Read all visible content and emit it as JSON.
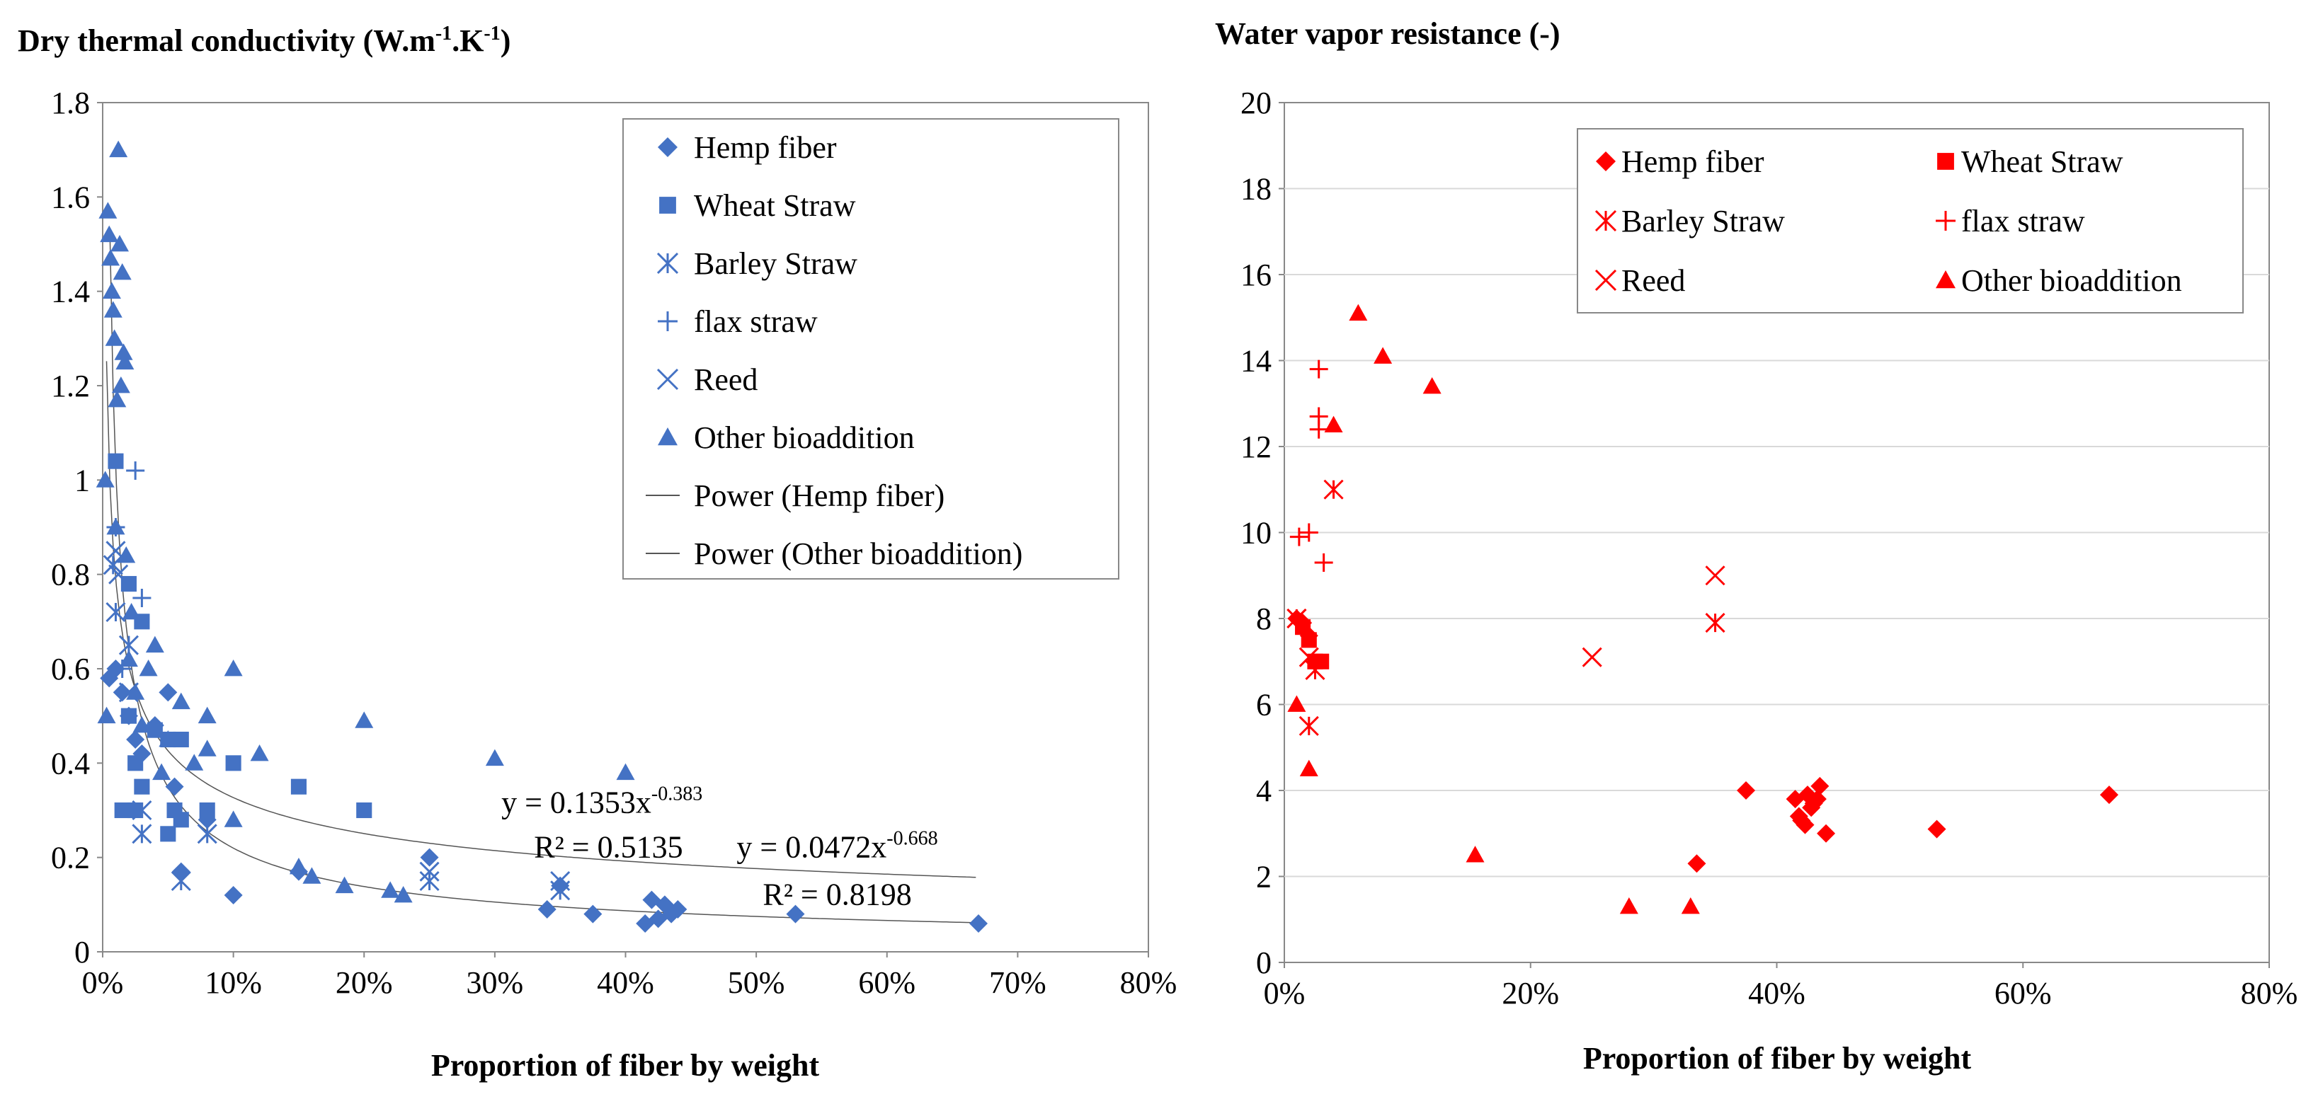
{
  "chart_data": [
    {
      "type": "scatter",
      "id": "left",
      "title": "Dry thermal conductivity (W.m-1.K-1)",
      "title_main": "Dry thermal conductivity (W.m",
      "title_sup1": "-1",
      "title_mid": ".K",
      "title_sup2": "-1",
      "title_end": ")",
      "xlabel": "Proportion of fiber by weight",
      "ylabel": "",
      "xlim": [
        0,
        80
      ],
      "ylim": [
        0,
        1.8
      ],
      "xticks": [
        0,
        10,
        20,
        30,
        40,
        50,
        60,
        70,
        80
      ],
      "xtick_labels": [
        "0%",
        "10%",
        "20%",
        "30%",
        "40%",
        "50%",
        "60%",
        "70%",
        "80%"
      ],
      "yticks": [
        0,
        0.2,
        0.4,
        0.6,
        0.8,
        1,
        1.2,
        1.4,
        1.6,
        1.8
      ],
      "ytick_labels": [
        "0",
        "0.2",
        "0.4",
        "0.6",
        "0.8",
        "1",
        "1.2",
        "1.4",
        "1.6",
        "1.8"
      ],
      "color": "#4472C4",
      "legend_position": "top-right",
      "series": [
        {
          "name": "Hemp fiber",
          "marker": "diamond",
          "x": [
            0.5,
            1,
            1.5,
            2,
            2.5,
            3,
            4,
            5,
            5.5,
            6,
            8,
            10,
            15,
            25,
            34,
            35,
            37.5,
            41.5,
            42,
            42.5,
            43,
            43.5,
            44,
            53,
            67
          ],
          "y": [
            0.58,
            0.6,
            0.55,
            0.5,
            0.45,
            0.42,
            0.48,
            0.55,
            0.35,
            0.17,
            0.28,
            0.12,
            0.17,
            0.2,
            0.09,
            0.14,
            0.08,
            0.06,
            0.11,
            0.07,
            0.1,
            0.08,
            0.09,
            0.08,
            0.06
          ]
        },
        {
          "name": "Wheat Straw",
          "marker": "square",
          "x": [
            1,
            1.5,
            2,
            2.5,
            3,
            2,
            2.5,
            3,
            4,
            5,
            5,
            5.5,
            6,
            6,
            8,
            10,
            15,
            20
          ],
          "y": [
            1.04,
            0.3,
            0.78,
            0.4,
            0.7,
            0.5,
            0.3,
            0.35,
            0.47,
            0.45,
            0.25,
            0.3,
            0.28,
            0.45,
            0.3,
            0.4,
            0.35,
            0.3
          ]
        },
        {
          "name": "Barley Straw",
          "marker": "asterisk",
          "x": [
            0.8,
            1,
            2,
            3,
            6,
            8,
            25,
            35
          ],
          "y": [
            0.82,
            0.72,
            0.65,
            0.25,
            0.15,
            0.25,
            0.15,
            0.13
          ]
        },
        {
          "name": "flax straw",
          "marker": "plus",
          "x": [
            1,
            1.5,
            2.5,
            3
          ],
          "y": [
            0.9,
            0.6,
            1.02,
            0.75
          ]
        },
        {
          "name": "Reed",
          "marker": "x",
          "x": [
            1,
            1.2,
            2,
            3,
            25,
            35
          ],
          "y": [
            0.85,
            0.8,
            0.55,
            0.3,
            0.17,
            0.15
          ]
        },
        {
          "name": "Other bioaddition",
          "marker": "triangle",
          "x": [
            0.2,
            0.3,
            0.4,
            0.5,
            0.6,
            0.7,
            0.8,
            0.9,
            1,
            1.1,
            1.2,
            1.3,
            1.4,
            1.5,
            1.6,
            1.7,
            1.8,
            2,
            2.2,
            2.5,
            3,
            3.5,
            4,
            4.5,
            5,
            6,
            7,
            8,
            8,
            10,
            10,
            12,
            15,
            16,
            18.5,
            20,
            22,
            23,
            30,
            40
          ],
          "y": [
            1.0,
            0.5,
            1.57,
            1.52,
            1.47,
            1.4,
            1.36,
            1.3,
            0.9,
            1.17,
            1.7,
            1.5,
            1.2,
            1.44,
            1.27,
            1.25,
            0.84,
            0.62,
            0.72,
            0.55,
            0.48,
            0.6,
            0.65,
            0.38,
            0.45,
            0.53,
            0.4,
            0.5,
            0.43,
            0.6,
            0.28,
            0.42,
            0.18,
            0.16,
            0.14,
            0.49,
            0.13,
            0.12,
            0.41,
            0.38
          ]
        },
        {
          "name": "Power (Hemp fiber)",
          "type": "line",
          "formula": {
            "a": 0.0472,
            "b": -0.668
          }
        },
        {
          "name": "Power (Other bioaddition)",
          "type": "line",
          "formula": {
            "a": 0.1353,
            "b": -0.383
          }
        }
      ],
      "annotations": [
        {
          "text_base": "y = 0.1353x",
          "text_sup": "-0.383",
          "x": 30.5,
          "y": 0.295
        },
        {
          "text_base": "R² = 0.5135",
          "text_sup": "",
          "x": 33,
          "y": 0.2
        },
        {
          "text_base": "y = 0.0472x",
          "text_sup": "-0.668",
          "x": 48.5,
          "y": 0.2
        },
        {
          "text_base": "R² = 0.8198",
          "text_sup": "",
          "x": 50.5,
          "y": 0.1
        }
      ]
    },
    {
      "type": "scatter",
      "id": "right",
      "title": "Water vapor resistance (-)",
      "xlabel": "Proportion of fiber by weight",
      "ylabel": "",
      "xlim": [
        0,
        80
      ],
      "ylim": [
        0,
        20
      ],
      "xticks": [
        0,
        20,
        40,
        60,
        80
      ],
      "xtick_labels": [
        "0%",
        "20%",
        "40%",
        "60%",
        "80%"
      ],
      "yticks": [
        0,
        2,
        4,
        6,
        8,
        10,
        12,
        14,
        16,
        18,
        20
      ],
      "ytick_labels": [
        "0",
        "2",
        "4",
        "6",
        "8",
        "10",
        "12",
        "14",
        "16",
        "18",
        "20"
      ],
      "color": "#FF0000",
      "legend_position": "top-right",
      "series": [
        {
          "name": "Hemp fiber",
          "marker": "diamond",
          "x": [
            1,
            1.5,
            2,
            33.5,
            37.5,
            41.5,
            41.8,
            42,
            42.3,
            42.5,
            42.8,
            43,
            43.3,
            43.5,
            44,
            53,
            67
          ],
          "y": [
            8,
            7.9,
            7.6,
            2.3,
            4.0,
            3.8,
            3.4,
            3.3,
            3.2,
            3.9,
            3.6,
            3.7,
            3.8,
            4.1,
            3.0,
            3.1,
            3.9
          ]
        },
        {
          "name": "Wheat Straw",
          "marker": "square",
          "x": [
            1.5,
            2,
            2.5,
            3
          ],
          "y": [
            7.8,
            7.5,
            7.0,
            7.0
          ]
        },
        {
          "name": "Barley Straw",
          "marker": "asterisk",
          "x": [
            1,
            2,
            2.5,
            4,
            35
          ],
          "y": [
            8,
            5.5,
            6.8,
            11,
            7.9
          ]
        },
        {
          "name": "flax straw",
          "marker": "plus",
          "x": [
            1.2,
            2,
            2.8,
            2.8,
            2.8,
            3.2
          ],
          "y": [
            9.9,
            10,
            13.8,
            12.7,
            12.4,
            9.3
          ]
        },
        {
          "name": "Reed",
          "marker": "x",
          "x": [
            1,
            2,
            25,
            35
          ],
          "y": [
            8,
            7.1,
            7.1,
            9
          ]
        },
        {
          "name": "Other bioaddition",
          "marker": "triangle",
          "x": [
            1,
            2,
            4,
            6,
            8,
            12,
            15.5,
            28,
            33
          ],
          "y": [
            6,
            4.5,
            12.5,
            15.1,
            14.1,
            13.4,
            2.5,
            1.3,
            1.3
          ]
        }
      ]
    }
  ]
}
